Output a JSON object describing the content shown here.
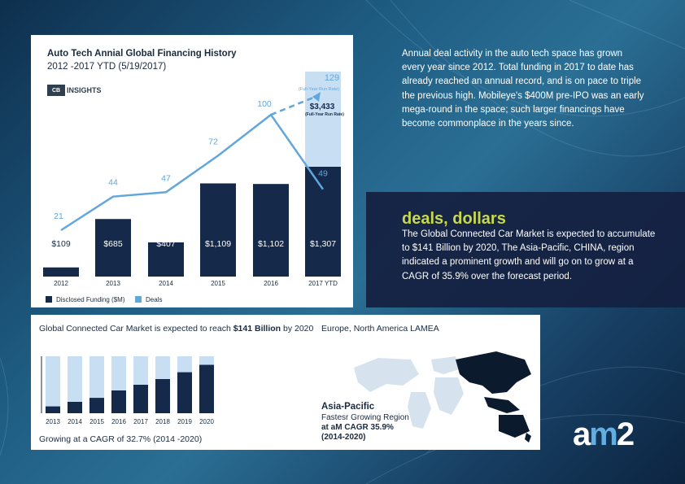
{
  "top_chart": {
    "title": "Auto Tech Annial Global Financing History",
    "subtitle": "2012 -2017 YTD (5/19/2017)",
    "logo_box": "CB",
    "logo_text": "INSIGHTS",
    "run_rate_label": "(Full-Year Run Rate)",
    "run_rate_label2": "(Full-Year Run Rate)",
    "projected_deals": "129",
    "projected_funding": "$3,433",
    "legend_funding": "Disclosed Funding ($M)",
    "legend_deals": "Deals"
  },
  "chart_data": [
    {
      "type": "bar",
      "title": "Auto Tech Annial Global Financing History",
      "categories": [
        "2012",
        "2013",
        "2014",
        "2015",
        "2016",
        "2017 YTD"
      ],
      "series": [
        {
          "name": "Disclosed Funding ($M)",
          "values": [
            109,
            685,
            407,
            1109,
            1102,
            1307
          ],
          "labels": [
            "$109",
            "$685",
            "$407",
            "$1,109",
            "$1,102",
            "$1,307"
          ]
        },
        {
          "name": "Deals",
          "type": "line",
          "values": [
            21,
            44,
            47,
            72,
            100,
            49
          ]
        }
      ],
      "projection": {
        "deals": 129,
        "funding": 3433
      }
    },
    {
      "type": "bar",
      "title": "Global Connected Car Market is expected to reach $141 Billion by 2020",
      "categories": [
        "2013",
        "2014",
        "2015",
        "2016",
        "2017",
        "2018",
        "2019",
        "2020"
      ],
      "values": [
        0.12,
        0.2,
        0.27,
        0.4,
        0.5,
        0.6,
        0.72,
        0.85
      ]
    }
  ],
  "right_text": "Annual deal activity in the auto tech space has grown every year since 2012. Total funding in 2017 to date has already reached an annual record, and is on pace to triple the previous high. Mobileye's $400M pre-IPO was an early mega-round in the space; such larger financings have become commonplace in the years since.",
  "deals": {
    "heading": "deals, dollars",
    "text": "The Global Connected Car Market is expected to accumulate  to $141 Billion by 2020, The Asia-Pacific, CHINA, region indicated a prominent growth and will go on to grow at a CAGR of 35.9% over the forecast period."
  },
  "bottom": {
    "title_prefix": "Global Connected Car Market is expected to reach ",
    "title_bold": "$141 Billion",
    "title_suffix": " by 2020",
    "footer": "Growing at a CAGR of 32.7% (2014 -2020)",
    "map_title": "Europe, North America LAMEA",
    "ap_title": "Asia-Pacific",
    "ap_line1": "Fastesr Growing Region",
    "ap_line2": "at aM CAGR 35.9%",
    "ap_line3": "(2014-2020)"
  },
  "brand": {
    "logo_a": "a",
    "logo_m": "m",
    "logo_2": "2"
  },
  "colors": {
    "navy": "#15294a",
    "line_blue": "#62a7dc",
    "light_bar": "#c8dff3",
    "accent": "#c8d94a"
  }
}
